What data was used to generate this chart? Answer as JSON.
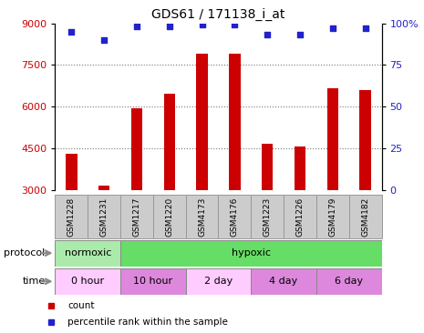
{
  "title": "GDS61 / 171138_i_at",
  "samples": [
    "GSM1228",
    "GSM1231",
    "GSM1217",
    "GSM1220",
    "GSM4173",
    "GSM4176",
    "GSM1223",
    "GSM1226",
    "GSM4179",
    "GSM4182"
  ],
  "counts": [
    4300,
    3150,
    5950,
    6450,
    7900,
    7900,
    4650,
    4550,
    6650,
    6600
  ],
  "percentiles": [
    95,
    90,
    98,
    98,
    99,
    99,
    93,
    93,
    97,
    97
  ],
  "ymin": 3000,
  "ymax": 9000,
  "yticks": [
    3000,
    4500,
    6000,
    7500,
    9000
  ],
  "right_yticks": [
    0,
    25,
    50,
    75,
    100
  ],
  "bar_color": "#cc0000",
  "dot_color": "#2222cc",
  "grid_color": "#777777",
  "protocol_groups": [
    {
      "label": "normoxic",
      "start": 0,
      "end": 2,
      "color": "#aaeaaa"
    },
    {
      "label": "hypoxic",
      "start": 2,
      "end": 10,
      "color": "#66dd66"
    }
  ],
  "time_groups": [
    {
      "label": "0 hour",
      "start": 0,
      "end": 2,
      "color": "#ffccff"
    },
    {
      "label": "10 hour",
      "start": 2,
      "end": 4,
      "color": "#dd88dd"
    },
    {
      "label": "2 day",
      "start": 4,
      "end": 6,
      "color": "#ffccff"
    },
    {
      "label": "4 day",
      "start": 6,
      "end": 8,
      "color": "#dd88dd"
    },
    {
      "label": "6 day",
      "start": 8,
      "end": 10,
      "color": "#dd88dd"
    }
  ],
  "legend_items": [
    {
      "label": "count",
      "color": "#cc0000"
    },
    {
      "label": "percentile rank within the sample",
      "color": "#2222cc"
    }
  ],
  "sample_box_color": "#cccccc",
  "sample_box_edge": "#999999"
}
